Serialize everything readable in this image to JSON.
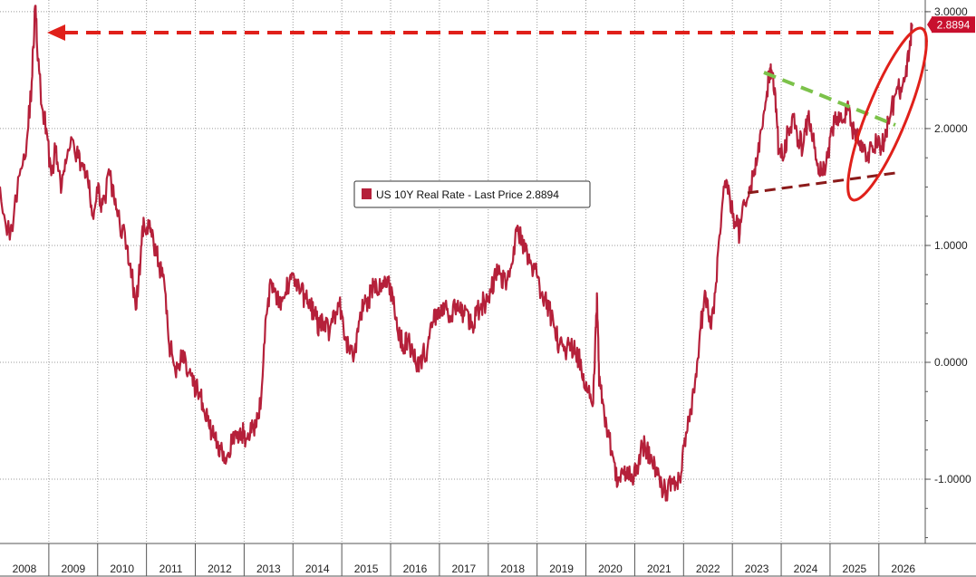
{
  "chart_data": {
    "type": "line",
    "legend_label": "US 10Y Real Rate - Last Price 2.8894",
    "last_price_tag": "2.8894",
    "last_value": 2.8894,
    "ylim": [
      -1.55,
      3.1
    ],
    "xlim": [
      2008.0,
      2026.95
    ],
    "grid": true,
    "legend_placement": "center",
    "y_ticks": [
      {
        "value": 3.0,
        "label": "3.0000"
      },
      {
        "value": 2.0,
        "label": "2.0000"
      },
      {
        "value": 1.0,
        "label": "1.0000"
      },
      {
        "value": 0.0,
        "label": "0.0000"
      },
      {
        "value": -1.0,
        "label": "-1.0000"
      }
    ],
    "x_ticks": [
      "2008",
      "2009",
      "2010",
      "2011",
      "2012",
      "2013",
      "2014",
      "2015",
      "2016",
      "2017",
      "2018",
      "2019",
      "2020",
      "2021",
      "2022",
      "2023",
      "2024",
      "2025",
      "2026"
    ],
    "series": [
      {
        "color": "#b5203a",
        "points": [
          [
            2008.0,
            1.5
          ],
          [
            2008.2,
            1.05
          ],
          [
            2008.4,
            1.6
          ],
          [
            2008.55,
            1.9
          ],
          [
            2008.65,
            2.4
          ],
          [
            2008.72,
            3.05
          ],
          [
            2008.78,
            2.6
          ],
          [
            2008.85,
            2.2
          ],
          [
            2008.95,
            2.0
          ],
          [
            2009.05,
            1.6
          ],
          [
            2009.15,
            1.85
          ],
          [
            2009.25,
            1.45
          ],
          [
            2009.35,
            1.7
          ],
          [
            2009.5,
            1.9
          ],
          [
            2009.6,
            1.75
          ],
          [
            2009.7,
            1.7
          ],
          [
            2009.8,
            1.55
          ],
          [
            2009.9,
            1.25
          ],
          [
            2010.0,
            1.45
          ],
          [
            2010.1,
            1.35
          ],
          [
            2010.25,
            1.6
          ],
          [
            2010.35,
            1.35
          ],
          [
            2010.45,
            1.2
          ],
          [
            2010.6,
            1.0
          ],
          [
            2010.7,
            0.75
          ],
          [
            2010.78,
            0.45
          ],
          [
            2010.88,
            0.9
          ],
          [
            2010.95,
            1.2
          ],
          [
            2011.05,
            1.15
          ],
          [
            2011.15,
            1.0
          ],
          [
            2011.25,
            0.85
          ],
          [
            2011.35,
            0.75
          ],
          [
            2011.45,
            0.2
          ],
          [
            2011.55,
            0.0
          ],
          [
            2011.65,
            -0.05
          ],
          [
            2011.75,
            0.1
          ],
          [
            2011.85,
            -0.1
          ],
          [
            2011.95,
            -0.2
          ],
          [
            2012.05,
            -0.25
          ],
          [
            2012.15,
            -0.35
          ],
          [
            2012.25,
            -0.5
          ],
          [
            2012.35,
            -0.6
          ],
          [
            2012.45,
            -0.7
          ],
          [
            2012.55,
            -0.75
          ],
          [
            2012.65,
            -0.8
          ],
          [
            2012.75,
            -0.7
          ],
          [
            2012.85,
            -0.65
          ],
          [
            2012.95,
            -0.6
          ],
          [
            2013.05,
            -0.65
          ],
          [
            2013.15,
            -0.6
          ],
          [
            2013.25,
            -0.55
          ],
          [
            2013.35,
            -0.3
          ],
          [
            2013.45,
            0.4
          ],
          [
            2013.55,
            0.7
          ],
          [
            2013.65,
            0.6
          ],
          [
            2013.75,
            0.45
          ],
          [
            2013.85,
            0.6
          ],
          [
            2013.95,
            0.75
          ],
          [
            2014.05,
            0.7
          ],
          [
            2014.15,
            0.6
          ],
          [
            2014.25,
            0.55
          ],
          [
            2014.35,
            0.5
          ],
          [
            2014.45,
            0.4
          ],
          [
            2014.55,
            0.3
          ],
          [
            2014.65,
            0.35
          ],
          [
            2014.75,
            0.25
          ],
          [
            2014.85,
            0.4
          ],
          [
            2014.95,
            0.5
          ],
          [
            2015.05,
            0.2
          ],
          [
            2015.15,
            0.1
          ],
          [
            2015.25,
            0.05
          ],
          [
            2015.35,
            0.35
          ],
          [
            2015.45,
            0.5
          ],
          [
            2015.55,
            0.55
          ],
          [
            2015.65,
            0.65
          ],
          [
            2015.75,
            0.6
          ],
          [
            2015.85,
            0.7
          ],
          [
            2015.95,
            0.7
          ],
          [
            2016.05,
            0.5
          ],
          [
            2016.15,
            0.25
          ],
          [
            2016.25,
            0.15
          ],
          [
            2016.35,
            0.2
          ],
          [
            2016.45,
            0.1
          ],
          [
            2016.55,
            0.0
          ],
          [
            2016.65,
            0.05
          ],
          [
            2016.75,
            0.1
          ],
          [
            2016.85,
            0.3
          ],
          [
            2016.95,
            0.45
          ],
          [
            2017.05,
            0.4
          ],
          [
            2017.15,
            0.45
          ],
          [
            2017.25,
            0.4
          ],
          [
            2017.35,
            0.5
          ],
          [
            2017.45,
            0.4
          ],
          [
            2017.55,
            0.45
          ],
          [
            2017.65,
            0.3
          ],
          [
            2017.75,
            0.4
          ],
          [
            2017.85,
            0.5
          ],
          [
            2017.95,
            0.5
          ],
          [
            2018.05,
            0.6
          ],
          [
            2018.15,
            0.75
          ],
          [
            2018.25,
            0.75
          ],
          [
            2018.35,
            0.7
          ],
          [
            2018.45,
            0.8
          ],
          [
            2018.55,
            1.05
          ],
          [
            2018.62,
            1.1
          ],
          [
            2018.75,
            0.95
          ],
          [
            2018.85,
            0.85
          ],
          [
            2018.95,
            0.8
          ],
          [
            2019.05,
            0.65
          ],
          [
            2019.15,
            0.55
          ],
          [
            2019.25,
            0.45
          ],
          [
            2019.35,
            0.3
          ],
          [
            2019.45,
            0.15
          ],
          [
            2019.55,
            0.1
          ],
          [
            2019.65,
            0.15
          ],
          [
            2019.75,
            0.1
          ],
          [
            2019.85,
            0.05
          ],
          [
            2019.95,
            -0.1
          ],
          [
            2020.05,
            -0.25
          ],
          [
            2020.15,
            -0.35
          ],
          [
            2020.2,
            0.3
          ],
          [
            2020.23,
            0.55
          ],
          [
            2020.27,
            -0.2
          ],
          [
            2020.35,
            -0.35
          ],
          [
            2020.45,
            -0.6
          ],
          [
            2020.55,
            -0.8
          ],
          [
            2020.65,
            -1.05
          ],
          [
            2020.75,
            -0.95
          ],
          [
            2020.85,
            -0.9
          ],
          [
            2020.95,
            -1.0
          ],
          [
            2021.05,
            -0.9
          ],
          [
            2021.15,
            -0.7
          ],
          [
            2021.25,
            -0.75
          ],
          [
            2021.35,
            -0.85
          ],
          [
            2021.45,
            -0.9
          ],
          [
            2021.55,
            -1.05
          ],
          [
            2021.65,
            -1.1
          ],
          [
            2021.75,
            -1.0
          ],
          [
            2021.85,
            -1.05
          ],
          [
            2021.95,
            -0.95
          ],
          [
            2022.05,
            -0.6
          ],
          [
            2022.15,
            -0.4
          ],
          [
            2022.25,
            -0.1
          ],
          [
            2022.35,
            0.3
          ],
          [
            2022.45,
            0.6
          ],
          [
            2022.55,
            0.3
          ],
          [
            2022.65,
            0.6
          ],
          [
            2022.75,
            1.1
          ],
          [
            2022.85,
            1.55
          ],
          [
            2022.95,
            1.4
          ],
          [
            2023.05,
            1.2
          ],
          [
            2023.15,
            1.1
          ],
          [
            2023.25,
            1.35
          ],
          [
            2023.35,
            1.5
          ],
          [
            2023.45,
            1.65
          ],
          [
            2023.55,
            1.8
          ],
          [
            2023.65,
            2.15
          ],
          [
            2023.75,
            2.45
          ],
          [
            2023.8,
            2.5
          ],
          [
            2023.88,
            2.3
          ],
          [
            2023.95,
            1.8
          ],
          [
            2024.05,
            1.75
          ],
          [
            2024.15,
            2.0
          ],
          [
            2024.25,
            2.1
          ],
          [
            2024.35,
            1.9
          ],
          [
            2024.45,
            1.85
          ],
          [
            2024.55,
            2.1
          ],
          [
            2024.65,
            1.9
          ],
          [
            2024.75,
            1.7
          ],
          [
            2024.85,
            1.6
          ],
          [
            2024.95,
            1.75
          ],
          [
            2025.05,
            2.0
          ],
          [
            2025.15,
            2.1
          ],
          [
            2025.25,
            2.05
          ],
          [
            2025.35,
            2.2
          ],
          [
            2025.45,
            2.0
          ],
          [
            2025.55,
            1.95
          ],
          [
            2025.65,
            1.8
          ],
          [
            2025.75,
            1.75
          ],
          [
            2025.85,
            1.85
          ],
          [
            2025.95,
            1.9
          ],
          [
            2026.05,
            1.85
          ],
          [
            2026.15,
            1.95
          ],
          [
            2026.25,
            2.15
          ],
          [
            2026.35,
            2.3
          ],
          [
            2026.45,
            2.35
          ],
          [
            2026.55,
            2.45
          ],
          [
            2026.62,
            2.65
          ],
          [
            2026.68,
            2.8894
          ]
        ]
      }
    ]
  }
}
